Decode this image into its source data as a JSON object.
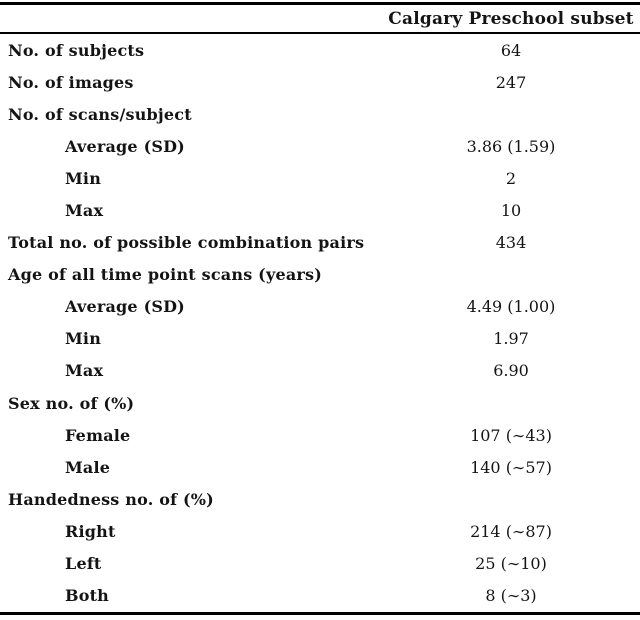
{
  "table": {
    "header": "Calgary Preschool subset",
    "rows": [
      {
        "label": "No. of subjects",
        "value": "64",
        "indent": false
      },
      {
        "label": "No. of images",
        "value": "247",
        "indent": false
      },
      {
        "label": "No. of scans/subject",
        "value": "",
        "indent": false
      },
      {
        "label": "Average (SD)",
        "value": "3.86 (1.59)",
        "indent": true
      },
      {
        "label": "Min",
        "value": "2",
        "indent": true
      },
      {
        "label": "Max",
        "value": "10",
        "indent": true
      },
      {
        "label": "Total no. of possible combination pairs",
        "value": "434",
        "indent": false
      },
      {
        "label": "Age of all time point scans (years)",
        "value": "",
        "indent": false
      },
      {
        "label": "Average (SD)",
        "value": "4.49 (1.00)",
        "indent": true
      },
      {
        "label": "Min",
        "value": "1.97",
        "indent": true
      },
      {
        "label": "Max",
        "value": "6.90",
        "indent": true
      },
      {
        "label": "Sex no. of (%)",
        "value": "",
        "indent": false
      },
      {
        "label": "Female",
        "value": "107 (∼43)",
        "indent": true
      },
      {
        "label": "Male",
        "value": "140 (∼57)",
        "indent": true
      },
      {
        "label": "Handedness no. of (%)",
        "value": "",
        "indent": false
      },
      {
        "label": "Right",
        "value": "214 (∼87)",
        "indent": true
      },
      {
        "label": "Left",
        "value": "25 (∼10)",
        "indent": true
      },
      {
        "label": "Both",
        "value": "8 (∼3)",
        "indent": true
      }
    ]
  },
  "colors": {
    "text": "#141414",
    "rule": "#000000",
    "background": "#ffffff"
  }
}
